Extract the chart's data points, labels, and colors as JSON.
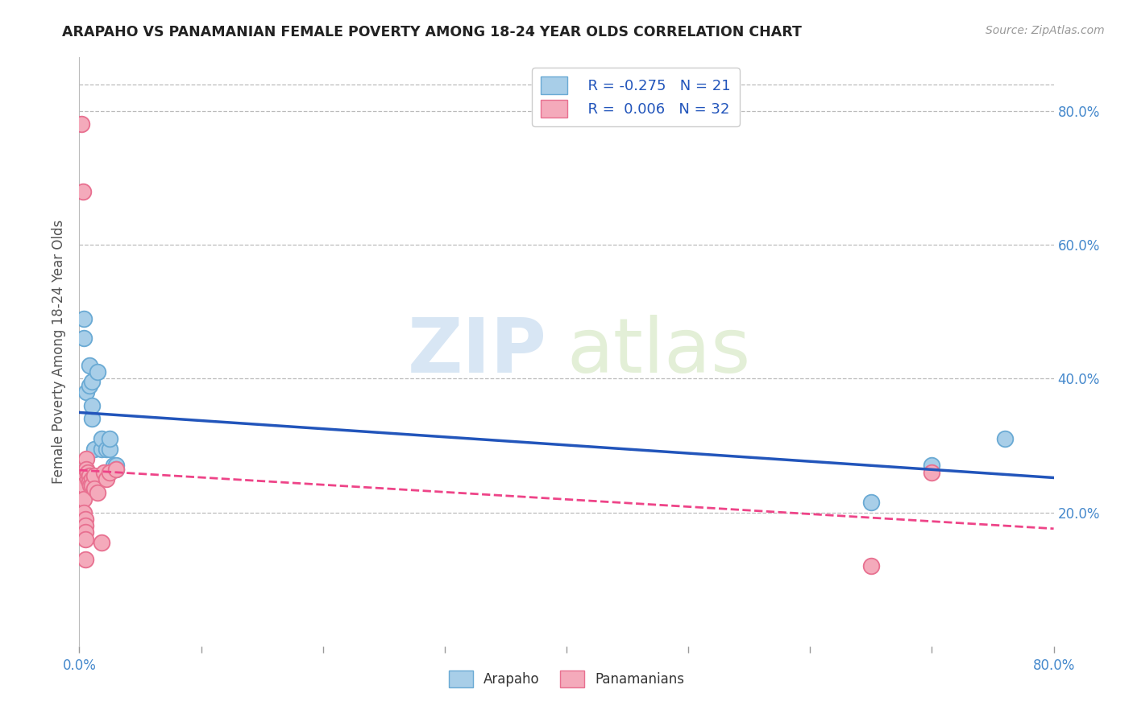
{
  "title": "ARAPAHO VS PANAMANIAN FEMALE POVERTY AMONG 18-24 YEAR OLDS CORRELATION CHART",
  "source": "Source: ZipAtlas.com",
  "ylabel": "Female Poverty Among 18-24 Year Olds",
  "xlim": [
    0.0,
    0.8
  ],
  "ylim": [
    0.0,
    0.88
  ],
  "xticks_labeled": [
    0.0,
    0.8
  ],
  "xticks_minor": [
    0.1,
    0.2,
    0.3,
    0.4,
    0.5,
    0.6,
    0.7
  ],
  "yticks_right": [
    0.2,
    0.4,
    0.6,
    0.8
  ],
  "arapaho_x": [
    0.004,
    0.004,
    0.006,
    0.008,
    0.008,
    0.01,
    0.01,
    0.01,
    0.012,
    0.015,
    0.018,
    0.018,
    0.022,
    0.025,
    0.025,
    0.028,
    0.03,
    0.03,
    0.65,
    0.7,
    0.76
  ],
  "arapaho_y": [
    0.49,
    0.46,
    0.38,
    0.39,
    0.42,
    0.34,
    0.36,
    0.395,
    0.295,
    0.41,
    0.295,
    0.31,
    0.295,
    0.295,
    0.31,
    0.27,
    0.27,
    0.265,
    0.215,
    0.27,
    0.31
  ],
  "panamanian_x": [
    0.002,
    0.003,
    0.003,
    0.003,
    0.003,
    0.004,
    0.004,
    0.004,
    0.005,
    0.005,
    0.005,
    0.005,
    0.005,
    0.006,
    0.006,
    0.007,
    0.007,
    0.008,
    0.008,
    0.009,
    0.01,
    0.01,
    0.012,
    0.012,
    0.015,
    0.018,
    0.02,
    0.022,
    0.025,
    0.03,
    0.65,
    0.7
  ],
  "panamanian_y": [
    0.78,
    0.68,
    0.26,
    0.24,
    0.22,
    0.24,
    0.22,
    0.2,
    0.19,
    0.18,
    0.17,
    0.16,
    0.13,
    0.28,
    0.265,
    0.26,
    0.25,
    0.255,
    0.245,
    0.24,
    0.25,
    0.24,
    0.255,
    0.235,
    0.23,
    0.155,
    0.26,
    0.25,
    0.26,
    0.265,
    0.12,
    0.26
  ],
  "arapaho_color": "#A8CEE8",
  "arapaho_edge": "#6aaad4",
  "panamanian_color": "#F4AABB",
  "panamanian_edge": "#E87090",
  "trend_arapaho_color": "#2255BB",
  "trend_panamanian_color": "#EE4488",
  "legend_r_arapaho": "R = -0.275",
  "legend_n_arapaho": "N = 21",
  "legend_r_panamanian": "R =  0.006",
  "legend_n_panamanian": "N = 32",
  "watermark_zip": "ZIP",
  "watermark_atlas": "atlas",
  "background_color": "#FFFFFF",
  "grid_color": "#BBBBBB",
  "right_tick_color": "#4488CC"
}
